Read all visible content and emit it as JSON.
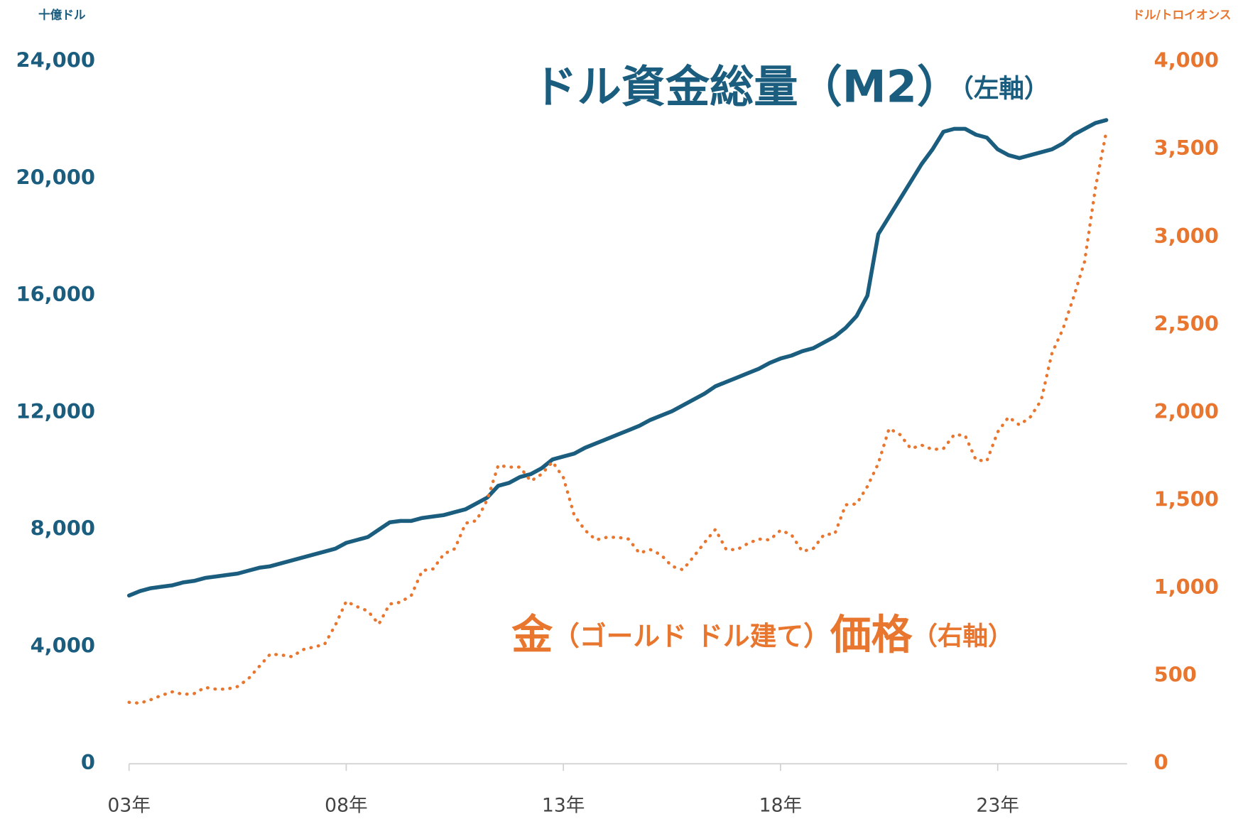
{
  "chart_data": {
    "type": "line",
    "y_unit_label": "十億ドル",
    "y2_unit_label": "ドル/トロイオンス",
    "annotations": [
      {
        "parts": [
          "ドル資金総量（M2）",
          "（左軸）"
        ],
        "color": "#1a5d7e"
      },
      {
        "parts": [
          "金",
          "（ゴールド ドル建て）",
          "価格",
          "（右軸）"
        ],
        "color": "#e8762f"
      }
    ],
    "categories": [
      "03年",
      null,
      null,
      null,
      null,
      null,
      null,
      null,
      null,
      null,
      null,
      null,
      null,
      null,
      null,
      null,
      null,
      null,
      null,
      null,
      "08年",
      null,
      null,
      null,
      null,
      null,
      null,
      null,
      null,
      null,
      null,
      null,
      null,
      null,
      null,
      null,
      null,
      null,
      null,
      null,
      "13年",
      null,
      null,
      null,
      null,
      null,
      null,
      null,
      null,
      null,
      null,
      null,
      null,
      null,
      null,
      null,
      null,
      null,
      null,
      null,
      "18年",
      null,
      null,
      null,
      null,
      null,
      null,
      null,
      null,
      null,
      null,
      null,
      null,
      null,
      null,
      null,
      null,
      null,
      null,
      null,
      "23年",
      null,
      null,
      null,
      null,
      null,
      null,
      null,
      null,
      null,
      null
    ],
    "series": [
      {
        "color": "#1a5d7e",
        "axis": "y",
        "style": "solid",
        "values": [
          5750,
          5900,
          6000,
          6050,
          6100,
          6200,
          6250,
          6350,
          6400,
          6450,
          6500,
          6600,
          6700,
          6750,
          6850,
          6950,
          7050,
          7150,
          7250,
          7350,
          7550,
          7650,
          7750,
          8000,
          8250,
          8300,
          8300,
          8400,
          8450,
          8500,
          8600,
          8700,
          8900,
          9100,
          9500,
          9600,
          9800,
          9900,
          10100,
          10400,
          10500,
          10600,
          10800,
          10950,
          11100,
          11250,
          11400,
          11550,
          11750,
          11900,
          12050,
          12250,
          12450,
          12650,
          12900,
          13050,
          13200,
          13350,
          13500,
          13700,
          13850,
          13950,
          14100,
          14200,
          14400,
          14600,
          14900,
          15300,
          16000,
          18100,
          18700,
          19300,
          19900,
          20500,
          21000,
          21600,
          21700,
          21700,
          21500,
          21400,
          21000,
          20800,
          20700,
          20800,
          20900,
          21000,
          21200,
          21500,
          21700,
          21900,
          22000
        ]
      },
      {
        "color": "#e8762f",
        "axis": "y2",
        "style": "dotted",
        "values": [
          350,
          345,
          365,
          390,
          410,
          395,
          400,
          435,
          425,
          425,
          440,
          485,
          555,
          625,
          620,
          610,
          650,
          665,
          680,
          790,
          925,
          895,
          870,
          795,
          910,
          920,
          960,
          1100,
          1110,
          1195,
          1225,
          1370,
          1385,
          1505,
          1700,
          1690,
          1690,
          1610,
          1650,
          1720,
          1630,
          1415,
          1330,
          1275,
          1290,
          1290,
          1280,
          1200,
          1220,
          1190,
          1125,
          1105,
          1180,
          1260,
          1335,
          1220,
          1220,
          1255,
          1280,
          1275,
          1330,
          1305,
          1210,
          1225,
          1305,
          1310,
          1475,
          1480,
          1580,
          1710,
          1910,
          1875,
          1795,
          1815,
          1790,
          1795,
          1875,
          1870,
          1730,
          1725,
          1890,
          1975,
          1930,
          1975,
          2070,
          2340,
          2475,
          2660,
          2860,
          3280,
          3600
        ]
      }
    ],
    "ylim": [
      0,
      24000
    ],
    "yticks": [
      0,
      {
        "value": 4000,
        "label": "4,000"
      },
      {
        "value": 8000,
        "label": "8,000"
      },
      {
        "value": 12000,
        "label": "12,000"
      },
      {
        "value": 16000,
        "label": "16,000"
      },
      {
        "value": 20000,
        "label": "20,000"
      },
      {
        "value": 24000,
        "label": "24,000"
      }
    ],
    "y2lim": [
      0,
      4000
    ],
    "y2ticks": [
      0,
      500,
      {
        "value": 1000,
        "label": "1,000"
      },
      {
        "value": 1500,
        "label": "1,500"
      },
      {
        "value": 2000,
        "label": "2,000"
      },
      {
        "value": 2500,
        "label": "2,500"
      },
      {
        "value": 3000,
        "label": "3,000"
      },
      {
        "value": 3500,
        "label": "3,500"
      },
      {
        "value": 4000,
        "label": "4,000"
      }
    ],
    "grid": false
  }
}
